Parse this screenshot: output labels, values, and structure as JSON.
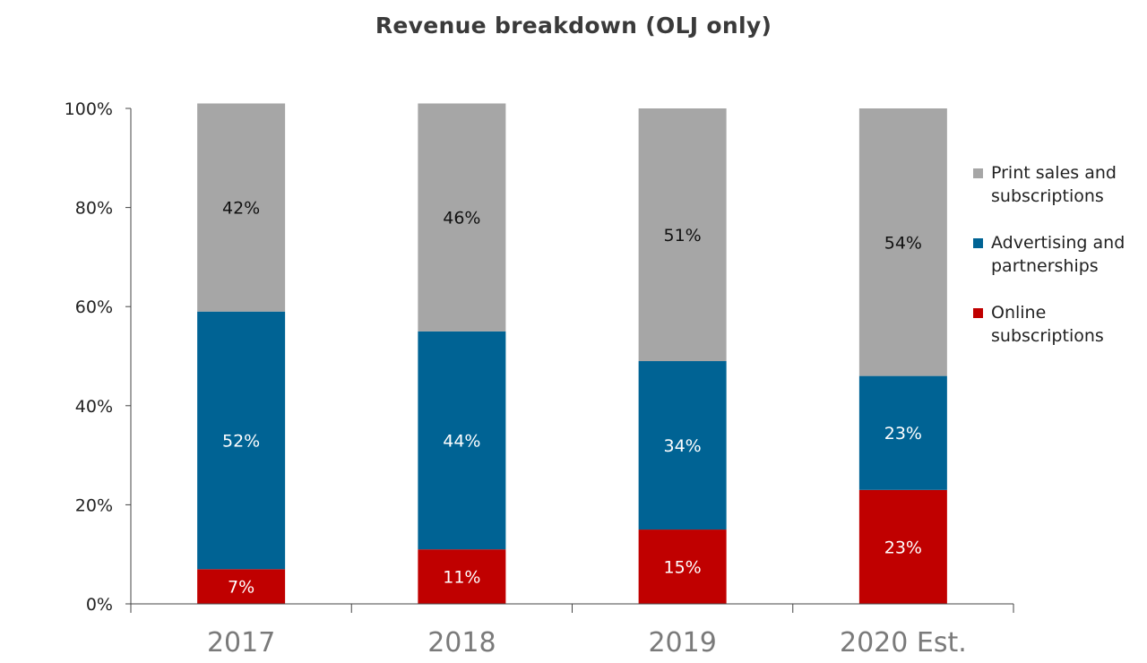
{
  "chart_data": {
    "type": "bar",
    "stacked": true,
    "title": "Revenue breakdown (OLJ only)",
    "categories": [
      "2017",
      "2018",
      "2019",
      "2020 Est."
    ],
    "y_ticks": [
      "0%",
      "20%",
      "40%",
      "60%",
      "80%",
      "100%"
    ],
    "ylim": [
      0,
      100
    ],
    "series": [
      {
        "name": "Online subscriptions",
        "color": "#c00000",
        "values": [
          7,
          11,
          15,
          23
        ],
        "labels": [
          "7%",
          "11%",
          "15%",
          "23%"
        ]
      },
      {
        "name": "Advertising and partnerships",
        "color": "#006394",
        "values": [
          52,
          44,
          34,
          23
        ],
        "labels": [
          "52%",
          "44%",
          "34%",
          "23%"
        ]
      },
      {
        "name": "Print sales and subscriptions",
        "color": "#a6a6a6",
        "values": [
          42,
          46,
          51,
          54
        ],
        "labels": [
          "42%",
          "46%",
          "51%",
          "54%"
        ]
      }
    ],
    "legend": {
      "position": "right",
      "items": [
        {
          "lines": [
            "Print sales and",
            "subscriptions"
          ],
          "color": "#a6a6a6"
        },
        {
          "lines": [
            "Advertising and",
            "partnerships"
          ],
          "color": "#006394"
        },
        {
          "lines": [
            "Online",
            "subscriptions"
          ],
          "color": "#c00000"
        }
      ]
    },
    "grid": false
  }
}
